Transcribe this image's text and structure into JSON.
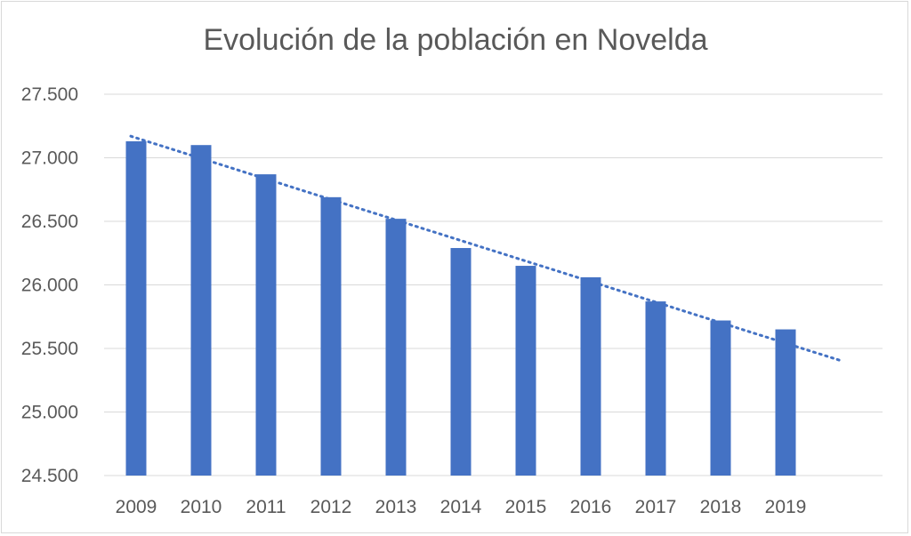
{
  "chart_data": {
    "type": "bar",
    "title": "Evolución de la población en Novelda",
    "categories": [
      "2009",
      "2010",
      "2011",
      "2012",
      "2013",
      "2014",
      "2015",
      "2016",
      "2017",
      "2018",
      "2019"
    ],
    "series": [
      {
        "values": [
          27130,
          27100,
          26870,
          26690,
          26520,
          26290,
          26150,
          26060,
          25870,
          25720,
          25650
        ]
      }
    ],
    "trendline": {
      "type": "linear",
      "style": "dotted",
      "start": 27170,
      "end": 25400
    },
    "ylim": [
      24500,
      27500
    ],
    "yticks": [
      "24.500",
      "25.000",
      "25.500",
      "26.000",
      "26.500",
      "27.000",
      "27.500"
    ],
    "ytick_values": [
      24500,
      25000,
      25500,
      26000,
      26500,
      27000,
      27500
    ],
    "grid": true,
    "legend": "none",
    "colors": {
      "bar": "#4472c4",
      "trendline": "#4472c4",
      "grid": "#d9d9d9",
      "text": "#595959"
    }
  }
}
